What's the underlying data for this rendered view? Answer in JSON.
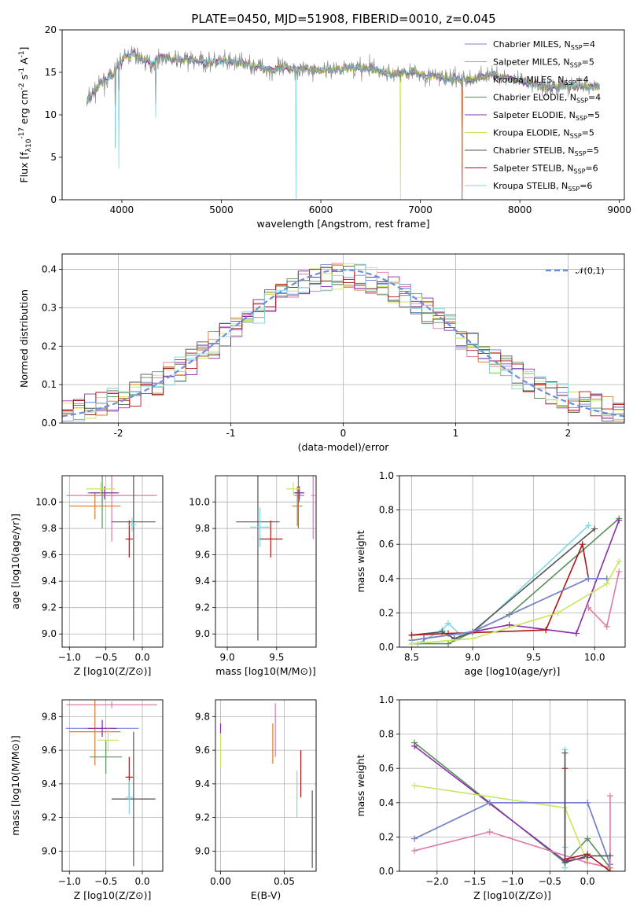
{
  "title": "PLATE=0450, MJD=51908, FIBERID=0010, z=0.045",
  "colors": {
    "chabrier_miles": "#6f86d6",
    "salpeter_miles": "#e07aa7",
    "kroupa_miles": "#d7772a",
    "chabrier_elodie": "#5a8f5a",
    "salpeter_elodie": "#8b2eaa",
    "kroupa_elodie": "#c8e65a",
    "chabrier_stelib": "#555555",
    "salpeter_stelib": "#b01515",
    "kroupa_stelib": "#7fd9e2",
    "normal": "#6b8fdb",
    "data": "#888888",
    "grid": "#b0b0b0"
  },
  "chart_data": [
    {
      "id": "spectrum",
      "type": "line",
      "xlabel": "wavelength [Angstrom, rest frame]",
      "ylabel": "Flux [f_λ10^-17 erg cm^-2 s^-1 A^-1]",
      "xlim": [
        3400,
        9050
      ],
      "ylim": [
        0,
        20
      ],
      "xticks": [
        4000,
        5000,
        6000,
        7000,
        8000,
        9000
      ],
      "yticks": [
        0,
        5,
        10,
        15,
        20
      ],
      "grid": false,
      "legend_position": "upper right",
      "series": [
        {
          "name": "Chabrier MILES, N_SSP=4",
          "color_key": "chabrier_miles"
        },
        {
          "name": "Salpeter MILES, N_SSP=5",
          "color_key": "salpeter_miles"
        },
        {
          "name": "Kroupa MILES, N_SSP=4",
          "color_key": "kroupa_miles"
        },
        {
          "name": "Chabrier ELODIE, N_SSP=4",
          "color_key": "chabrier_elodie"
        },
        {
          "name": "Salpeter ELODIE, N_SSP=5",
          "color_key": "salpeter_elodie"
        },
        {
          "name": "Kroupa ELODIE, N_SSP=5",
          "color_key": "kroupa_elodie"
        },
        {
          "name": "Chabrier STELIB, N_SSP=5",
          "color_key": "chabrier_stelib"
        },
        {
          "name": "Salpeter STELIB, N_SSP=6",
          "color_key": "salpeter_stelib"
        },
        {
          "name": "Kroupa STELIB, N_SSP=6",
          "color_key": "kroupa_stelib"
        }
      ],
      "data_profile": {
        "wavelength": [
          3650,
          3700,
          3800,
          3900,
          4000,
          4100,
          4200,
          4300,
          4400,
          4500,
          4700,
          4900,
          5100,
          5300,
          5500,
          5700,
          5900,
          6100,
          6300,
          6500,
          6700,
          6900,
          7100,
          7300,
          7500,
          7700,
          7900,
          8100,
          8300,
          8500,
          8800
        ],
        "flux": [
          11.5,
          12.5,
          13.8,
          14.5,
          16.5,
          17.2,
          16.6,
          16.0,
          16.9,
          16.5,
          16.4,
          16.2,
          16.2,
          15.9,
          15.3,
          15.5,
          15.3,
          15.3,
          15.6,
          15.4,
          14.8,
          15.0,
          14.6,
          14.2,
          14.1,
          14.8,
          14.3,
          13.6,
          13.3,
          13.4,
          13.3
        ]
      },
      "absorption_features": [
        {
          "wavelength": 3900,
          "depth": 0
        },
        {
          "wavelength": 3934,
          "depth": 6.5
        },
        {
          "wavelength": 3968,
          "depth": 4.0
        },
        {
          "wavelength": 4340,
          "depth": 9.5
        },
        {
          "wavelength": 5750,
          "depth": 0
        },
        {
          "wavelength": 6800,
          "depth": 0
        },
        {
          "wavelength": 7420,
          "depth": 0
        }
      ]
    },
    {
      "id": "residuals",
      "type": "histogram",
      "xlabel": "(data-model)/error",
      "ylabel": "Normed distribution",
      "xlim": [
        -2.5,
        2.5
      ],
      "ylim": [
        0,
        0.44
      ],
      "xticks": [
        -2,
        -1,
        0,
        1,
        2
      ],
      "yticks": [
        0.0,
        0.1,
        0.2,
        0.3,
        0.4
      ],
      "grid": true,
      "bin_width": 0.1,
      "reference_curve": {
        "label": "N(0,1)",
        "mean": 0,
        "sigma": 1
      },
      "series_color_keys": [
        "chabrier_miles",
        "salpeter_miles",
        "kroupa_miles",
        "chabrier_elodie",
        "salpeter_elodie",
        "kroupa_elodie",
        "chabrier_stelib",
        "salpeter_stelib",
        "kroupa_stelib"
      ]
    },
    {
      "id": "age_vs_Z",
      "type": "errorbar",
      "xlabel": "Z [log10(Z/Z⊙)]",
      "ylabel": "age [log10(age/yr)]",
      "xlim": [
        -1.1,
        0.28
      ],
      "ylim": [
        8.9,
        10.2
      ],
      "xticks": [
        -1.0,
        -0.5,
        0.0
      ],
      "yticks": [
        9.0,
        9.2,
        9.4,
        9.6,
        9.8,
        10.0
      ],
      "grid": true,
      "points": [
        {
          "color_key": "chabrier_miles",
          "x": -0.55,
          "xerr": 0.23,
          "y": 10.05,
          "yerr": 0.05
        },
        {
          "color_key": "salpeter_miles",
          "x": -0.42,
          "xerr": 0.62,
          "y": 10.05,
          "yerr": 0.35
        },
        {
          "color_key": "kroupa_miles",
          "x": -0.65,
          "xerr": 0.35,
          "y": 9.97,
          "yerr": 0.1
        },
        {
          "color_key": "chabrier_elodie",
          "x": -0.55,
          "xerr": 0.2,
          "y": 10.07,
          "yerr": 0.27
        },
        {
          "color_key": "salpeter_elodie",
          "x": -0.52,
          "xerr": 0.2,
          "y": 10.07,
          "yerr": 0.05
        },
        {
          "color_key": "kroupa_elodie",
          "x": -0.57,
          "xerr": 0.2,
          "y": 10.1,
          "yerr": 0.05
        },
        {
          "color_key": "chabrier_stelib",
          "x": -0.12,
          "xerr": 0.3,
          "y": 9.85,
          "yerr": 0.9
        },
        {
          "color_key": "salpeter_stelib",
          "x": -0.18,
          "xerr": 0.05,
          "y": 9.72,
          "yerr": 0.14
        },
        {
          "color_key": "kroupa_stelib",
          "x": -0.14,
          "xerr": 0.06,
          "y": 9.83,
          "yerr": 0.05
        }
      ]
    },
    {
      "id": "age_vs_mass",
      "type": "errorbar",
      "xlabel": "mass [log10(M/M⊙)]",
      "ylabel": "",
      "xlim": [
        8.88,
        9.9
      ],
      "ylim": [
        8.9,
        10.2
      ],
      "xticks": [
        9.0,
        9.5
      ],
      "yticks": [
        9.0,
        9.2,
        9.4,
        9.6,
        9.8,
        10.0
      ],
      "grid": true,
      "points": [
        {
          "color_key": "chabrier_miles",
          "x": 9.73,
          "xerr": 0.05,
          "y": 10.05,
          "yerr": 0.05
        },
        {
          "color_key": "salpeter_miles",
          "x": 9.87,
          "xerr": 0.02,
          "y": 10.05,
          "yerr": 0.33
        },
        {
          "color_key": "kroupa_miles",
          "x": 9.71,
          "xerr": 0.05,
          "y": 9.97,
          "yerr": 0.15
        },
        {
          "color_key": "chabrier_elodie",
          "x": 9.72,
          "xerr": 0.05,
          "y": 10.07,
          "yerr": 0.27
        },
        {
          "color_key": "salpeter_elodie",
          "x": 9.73,
          "xerr": 0.05,
          "y": 10.07,
          "yerr": 0.05
        },
        {
          "color_key": "kroupa_elodie",
          "x": 9.67,
          "xerr": 0.07,
          "y": 10.1,
          "yerr": 0.05
        },
        {
          "color_key": "chabrier_stelib",
          "x": 9.31,
          "xerr": 0.22,
          "y": 9.85,
          "yerr": 0.9
        },
        {
          "color_key": "salpeter_stelib",
          "x": 9.44,
          "xerr": 0.12,
          "y": 9.72,
          "yerr": 0.14
        },
        {
          "color_key": "kroupa_stelib",
          "x": 9.33,
          "xerr": 0.1,
          "y": 9.81,
          "yerr": 0.15
        }
      ]
    },
    {
      "id": "weight_vs_age",
      "type": "line",
      "xlabel": "age [log10(age/yr)]",
      "ylabel": "mass weight",
      "xlim": [
        8.4,
        10.25
      ],
      "ylim": [
        0,
        1
      ],
      "xticks": [
        8.5,
        9.0,
        9.5,
        10.0
      ],
      "yticks": [
        0.0,
        0.2,
        0.4,
        0.6,
        0.8,
        1.0
      ],
      "grid": true,
      "series": [
        {
          "color_key": "kroupa_stelib",
          "x": [
            8.55,
            8.75,
            8.8,
            8.9,
            9.0,
            9.95
          ],
          "y": [
            0.02,
            0.1,
            0.14,
            0.07,
            0.08,
            0.71
          ]
        },
        {
          "color_key": "chabrier_stelib",
          "x": [
            8.5,
            8.75,
            8.85,
            9.0,
            10.0
          ],
          "y": [
            0.07,
            0.09,
            0.05,
            0.09,
            0.69
          ]
        },
        {
          "color_key": "chabrier_elodie",
          "x": [
            8.5,
            8.8,
            9.3,
            10.2
          ],
          "y": [
            0.02,
            0.02,
            0.19,
            0.75
          ]
        },
        {
          "color_key": "salpeter_elodie",
          "x": [
            8.6,
            9.0,
            9.3,
            9.85,
            10.2
          ],
          "y": [
            0.05,
            0.09,
            0.13,
            0.08,
            0.74
          ]
        },
        {
          "color_key": "salpeter_stelib",
          "x": [
            8.5,
            8.8,
            9.6,
            9.9,
            9.95
          ],
          "y": [
            0.07,
            0.08,
            0.1,
            0.6,
            0.4
          ]
        },
        {
          "color_key": "kroupa_miles",
          "x": [
            8.5,
            9.0,
            9.95,
            10.1
          ],
          "y": [
            0.04,
            0.09,
            0.4,
            0.4
          ]
        },
        {
          "color_key": "chabrier_miles",
          "x": [
            8.5,
            9.0,
            9.95,
            10.1
          ],
          "y": [
            0.04,
            0.09,
            0.4,
            0.4
          ]
        },
        {
          "color_key": "kroupa_elodie",
          "x": [
            8.5,
            9.0,
            9.7,
            10.1,
            10.2
          ],
          "y": [
            0.02,
            0.05,
            0.2,
            0.37,
            0.5
          ]
        },
        {
          "color_key": "salpeter_miles",
          "x": [
            9.95,
            10.1,
            10.2
          ],
          "y": [
            0.23,
            0.12,
            0.44
          ]
        }
      ]
    },
    {
      "id": "mass_vs_Z",
      "type": "errorbar",
      "xlabel": "Z [log10(Z/Z⊙)]",
      "ylabel": "mass [log10(M/M⊙)]",
      "xlim": [
        -1.1,
        0.28
      ],
      "ylim": [
        8.88,
        9.9
      ],
      "xticks": [
        -1.0,
        -0.5,
        0.0
      ],
      "yticks": [
        9.0,
        9.2,
        9.4,
        9.6,
        9.8
      ],
      "grid": true,
      "points": [
        {
          "color_key": "chabrier_miles",
          "x": -0.55,
          "xerr": 0.5,
          "y": 9.73,
          "yerr": 0.05
        },
        {
          "color_key": "salpeter_miles",
          "x": -0.42,
          "xerr": 0.62,
          "y": 9.87,
          "yerr": 0.02
        },
        {
          "color_key": "kroupa_miles",
          "x": -0.65,
          "xerr": 0.35,
          "y": 9.71,
          "yerr": 0.2
        },
        {
          "color_key": "chabrier_elodie",
          "x": -0.5,
          "xerr": 0.22,
          "y": 9.56,
          "yerr": 0.1
        },
        {
          "color_key": "salpeter_elodie",
          "x": -0.55,
          "xerr": 0.2,
          "y": 9.73,
          "yerr": 0.05
        },
        {
          "color_key": "kroupa_elodie",
          "x": -0.47,
          "xerr": 0.14,
          "y": 9.66,
          "yerr": 0.07
        },
        {
          "color_key": "chabrier_stelib",
          "x": -0.12,
          "xerr": 0.3,
          "y": 9.31,
          "yerr": 0.4
        },
        {
          "color_key": "salpeter_stelib",
          "x": -0.18,
          "xerr": 0.05,
          "y": 9.44,
          "yerr": 0.12
        },
        {
          "color_key": "kroupa_stelib",
          "x": -0.18,
          "xerr": 0.05,
          "y": 9.32,
          "yerr": 0.1
        }
      ]
    },
    {
      "id": "mass_vs_ebv",
      "type": "errorbar",
      "xlabel": "E(B-V)",
      "ylabel": "",
      "xlim": [
        -0.004,
        0.075
      ],
      "ylim": [
        8.88,
        9.9
      ],
      "xticks": [
        0.0,
        0.05
      ],
      "yticks": [
        9.0,
        9.2,
        9.4,
        9.6,
        9.8
      ],
      "grid": true,
      "points": [
        {
          "color_key": "salpeter_elodie",
          "x": 0.0,
          "xerr": 0,
          "y": 9.73,
          "yerr": 0.03
        },
        {
          "color_key": "kroupa_elodie",
          "x": 0.0,
          "xerr": 0,
          "y": 9.6,
          "yerr": 0.1
        },
        {
          "color_key": "kroupa_miles",
          "x": 0.041,
          "xerr": 0,
          "y": 9.64,
          "yerr": 0.12
        },
        {
          "color_key": "salpeter_miles",
          "x": 0.043,
          "xerr": 0,
          "y": 9.72,
          "yerr": 0.16
        },
        {
          "color_key": "kroupa_stelib",
          "x": 0.06,
          "xerr": 0,
          "y": 9.34,
          "yerr": 0.14
        },
        {
          "color_key": "salpeter_stelib",
          "x": 0.063,
          "xerr": 0,
          "y": 9.46,
          "yerr": 0.14
        },
        {
          "color_key": "chabrier_stelib",
          "x": 0.072,
          "xerr": 0,
          "y": 9.13,
          "yerr": 0.23
        }
      ]
    },
    {
      "id": "weight_vs_Z",
      "type": "line",
      "xlabel": "Z [log10(Z/Z⊙)]",
      "ylabel": "mass weight",
      "xlim": [
        -2.5,
        0.5
      ],
      "ylim": [
        0,
        1
      ],
      "xticks": [
        -2.0,
        -1.5,
        -1.0,
        -0.5,
        0.0
      ],
      "yticks": [
        0.0,
        0.2,
        0.4,
        0.6,
        0.8,
        1.0
      ],
      "grid": true,
      "series": [
        {
          "color_key": "chabrier_elodie",
          "x": [
            -2.3,
            -0.3,
            0.0,
            0.3
          ],
          "y": [
            0.75,
            0.05,
            0.19,
            0.02
          ]
        },
        {
          "color_key": "salpeter_elodie",
          "x": [
            -2.3,
            -0.3,
            0.0
          ],
          "y": [
            0.73,
            0.06,
            0.08
          ]
        },
        {
          "color_key": "kroupa_elodie",
          "x": [
            -2.3,
            -0.3,
            0.0,
            0.3
          ],
          "y": [
            0.5,
            0.37,
            0.05,
            0.02
          ]
        },
        {
          "color_key": "kroupa_miles",
          "x": [
            -2.3,
            -1.3,
            0.0,
            0.3
          ],
          "y": [
            0.19,
            0.4,
            0.4,
            0.04
          ]
        },
        {
          "color_key": "chabrier_miles",
          "x": [
            -2.3,
            -1.3,
            0.0,
            0.3
          ],
          "y": [
            0.19,
            0.4,
            0.4,
            0.04
          ]
        },
        {
          "color_key": "salpeter_miles",
          "x": [
            -2.3,
            -1.3,
            0.0,
            0.3,
            0.3
          ],
          "y": [
            0.12,
            0.23,
            0.05,
            0.02,
            0.44
          ]
        },
        {
          "color_key": "kroupa_stelib",
          "x": [
            -0.3,
            -0.3,
            -0.3,
            -0.3
          ],
          "y": [
            0.71,
            0.02,
            0.14,
            0.05
          ]
        },
        {
          "color_key": "salpeter_stelib",
          "x": [
            -0.3,
            -0.3,
            0.0,
            0.3
          ],
          "y": [
            0.6,
            0.07,
            0.1,
            0.0
          ]
        },
        {
          "color_key": "chabrier_stelib",
          "x": [
            -0.3,
            -0.3,
            0.0,
            0.3
          ],
          "y": [
            0.69,
            0.05,
            0.09,
            0.09
          ]
        }
      ]
    }
  ]
}
